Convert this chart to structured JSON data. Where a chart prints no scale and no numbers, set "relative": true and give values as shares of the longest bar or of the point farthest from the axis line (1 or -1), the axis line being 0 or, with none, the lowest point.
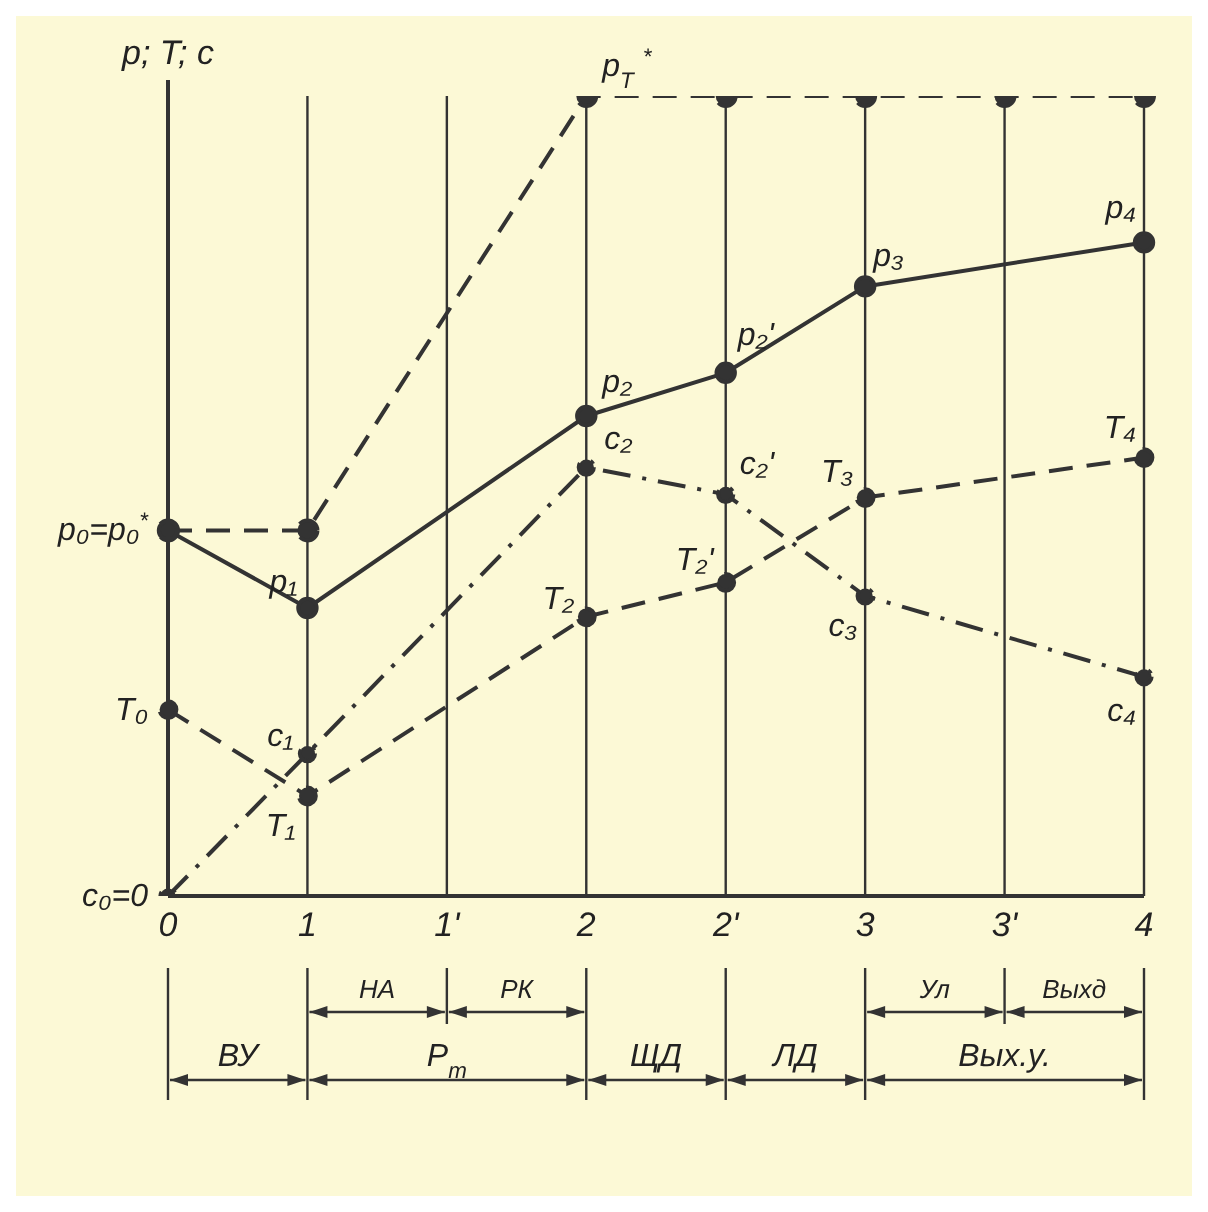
{
  "chart_data": {
    "type": "line",
    "relative": true,
    "ylabel": "p; T; c",
    "categories": [
      "0",
      "1",
      "1'",
      "2",
      "2'",
      "3",
      "3'",
      "4"
    ],
    "series": [
      {
        "color": "#333333",
        "line_style": "dashed",
        "values": [
          0.457,
          0.457,
          null,
          1,
          1,
          1,
          1,
          1
        ]
      },
      {
        "color": "#333333",
        "line_style": "solid",
        "values": [
          0.457,
          0.36,
          null,
          0.6,
          0.654,
          0.762,
          null,
          0.817
        ]
      },
      {
        "color": "#333333",
        "line_style": "dashed",
        "values": [
          0.233,
          0.125,
          null,
          0.349,
          0.392,
          0.498,
          null,
          0.548
        ]
      },
      {
        "color": "#333333",
        "line_style": "dashdot",
        "values": [
          0,
          0.178,
          null,
          0.536,
          0.502,
          0.375,
          null,
          0.274
        ]
      }
    ],
    "marker": "circle",
    "grid": "x",
    "legend": false,
    "annotations": [
      {
        "text": "p$_{T}$$^{*}$",
        "x": "2",
        "y": 1
      },
      {
        "text": "p₀=p₀$^{*}$",
        "x": "0",
        "y": 0.457
      },
      {
        "text": "p₁",
        "x": "1",
        "y": 0.36
      },
      {
        "text": "p₂",
        "x": "2",
        "y": 0.6
      },
      {
        "text": "p₂'",
        "x": "2'",
        "y": 0.654
      },
      {
        "text": "p₃",
        "x": "3",
        "y": 0.762
      },
      {
        "text": "p₄",
        "x": "4",
        "y": 0.817
      },
      {
        "text": "T₀",
        "x": "0",
        "y": 0.233
      },
      {
        "text": "T₁",
        "x": "1",
        "y": 0.125
      },
      {
        "text": "T₂",
        "x": "2",
        "y": 0.349
      },
      {
        "text": "T₂'",
        "x": "2'",
        "y": 0.392
      },
      {
        "text": "T₃",
        "x": "3",
        "y": 0.498
      },
      {
        "text": "T₄",
        "x": "4",
        "y": 0.548
      },
      {
        "text": "c₀=0",
        "x": "0",
        "y": 0
      },
      {
        "text": "c₁",
        "x": "1",
        "y": 0.178
      },
      {
        "text": "c₂",
        "x": "2",
        "y": 0.536
      },
      {
        "text": "c₂'",
        "x": "2'",
        "y": 0.502
      },
      {
        "text": "c₃",
        "x": "3",
        "y": 0.375
      },
      {
        "text": "c₄",
        "x": "4",
        "y": 0.274
      },
      "ВУ",
      "НА",
      "РК",
      "Р$_{т}$",
      "ЩД",
      "ЛД",
      "Ул",
      "Выхд",
      "Вых.у."
    ]
  }
}
